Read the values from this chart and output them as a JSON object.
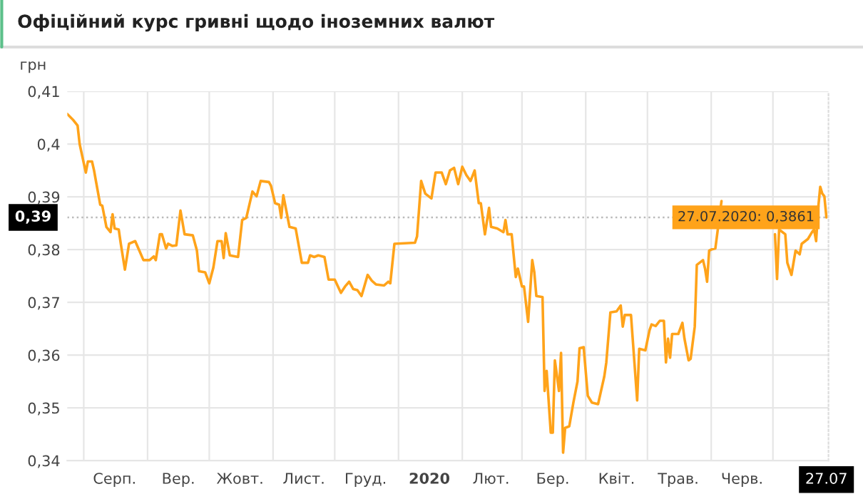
{
  "chart_data": {
    "type": "line",
    "title": "Офіційний курс гривні щодо іноземних валют",
    "ylabel": "грн",
    "x": [
      "2019-07-24",
      "2019-07-27",
      "2019-07-29",
      "2019-07-30",
      "2019-08-02",
      "2019-08-03",
      "2019-08-05",
      "2019-08-06",
      "2019-08-07",
      "2019-08-09",
      "2019-08-10",
      "2019-08-12",
      "2019-08-14",
      "2019-08-15",
      "2019-08-16",
      "2019-08-18",
      "2019-08-19",
      "2019-08-21",
      "2019-08-23",
      "2019-08-26",
      "2019-08-28",
      "2019-08-30",
      "2019-09-02",
      "2019-09-04",
      "2019-09-05",
      "2019-09-07",
      "2019-09-08",
      "2019-09-10",
      "2019-09-11",
      "2019-09-13",
      "2019-09-15",
      "2019-09-17",
      "2019-09-19",
      "2019-09-23",
      "2019-09-25",
      "2019-09-26",
      "2019-09-29",
      "2019-10-01",
      "2019-10-03",
      "2019-10-05",
      "2019-10-07",
      "2019-10-08",
      "2019-10-09",
      "2019-10-11",
      "2019-10-15",
      "2019-10-17",
      "2019-10-19",
      "2019-10-22",
      "2019-10-24",
      "2019-10-26",
      "2019-10-30",
      "2019-10-31",
      "2019-11-02",
      "2019-11-04",
      "2019-11-05",
      "2019-11-06",
      "2019-11-09",
      "2019-11-12",
      "2019-11-15",
      "2019-11-18",
      "2019-11-19",
      "2019-11-21",
      "2019-11-23",
      "2019-11-26",
      "2019-11-28",
      "2019-12-01",
      "2019-12-04",
      "2019-12-06",
      "2019-12-08",
      "2019-12-10",
      "2019-12-12",
      "2019-12-14",
      "2019-12-15",
      "2019-12-17",
      "2019-12-19",
      "2019-12-21",
      "2019-12-25",
      "2019-12-27",
      "2019-12-28",
      "2019-12-30",
      "2020-01-09",
      "2020-01-10",
      "2020-01-12",
      "2020-01-14",
      "2020-01-17",
      "2020-01-19",
      "2020-01-22",
      "2020-01-24",
      "2020-01-26",
      "2020-01-28",
      "2020-01-30",
      "2020-02-01",
      "2020-02-03",
      "2020-02-05",
      "2020-02-07",
      "2020-02-09",
      "2020-02-10",
      "2020-02-12",
      "2020-02-14",
      "2020-02-15",
      "2020-02-18",
      "2020-02-21",
      "2020-02-22",
      "2020-02-23",
      "2020-02-25",
      "2020-02-27",
      "2020-02-28",
      "2020-03-01",
      "2020-03-02",
      "2020-03-04",
      "2020-03-06",
      "2020-03-07",
      "2020-03-08",
      "2020-03-11",
      "2020-03-12",
      "2020-03-13",
      "2020-03-15",
      "2020-03-16",
      "2020-03-17",
      "2020-03-19",
      "2020-03-20",
      "2020-03-21",
      "2020-03-22",
      "2020-03-24",
      "2020-03-26",
      "2020-03-28",
      "2020-03-29",
      "2020-03-31",
      "2020-04-02",
      "2020-04-04",
      "2020-04-07",
      "2020-04-10",
      "2020-04-11",
      "2020-04-13",
      "2020-04-16",
      "2020-04-18",
      "2020-04-19",
      "2020-04-20",
      "2020-04-23",
      "2020-04-24",
      "2020-04-26",
      "2020-04-27",
      "2020-04-30",
      "2020-05-02",
      "2020-05-03",
      "2020-05-05",
      "2020-05-07",
      "2020-05-09",
      "2020-05-10",
      "2020-05-11",
      "2020-05-12",
      "2020-05-13",
      "2020-05-16",
      "2020-05-18",
      "2020-05-19",
      "2020-05-21",
      "2020-05-22",
      "2020-05-24",
      "2020-05-25",
      "2020-05-28",
      "2020-05-29",
      "2020-05-30",
      "2020-05-31",
      "2020-06-01",
      "2020-06-03",
      "2020-06-06",
      "2020-06-08",
      "2020-06-20",
      "2020-07-02",
      "2020-07-03",
      "2020-07-04",
      "2020-07-07",
      "2020-07-08",
      "2020-07-10",
      "2020-07-12",
      "2020-07-14",
      "2020-07-15",
      "2020-07-18",
      "2020-07-20",
      "2020-07-21",
      "2020-07-22",
      "2020-07-23",
      "2020-07-24",
      "2020-07-25",
      "2020-07-26",
      "2020-07-27"
    ],
    "series": [
      {
        "color": "#ffa31a",
        "values": [
          0.4057,
          0.4045,
          0.4035,
          0.4,
          0.3946,
          0.3967,
          0.3967,
          0.395,
          0.3928,
          0.3885,
          0.3883,
          0.3843,
          0.3833,
          0.3867,
          0.384,
          0.3838,
          0.3811,
          0.3762,
          0.3811,
          0.3816,
          0.3798,
          0.378,
          0.378,
          0.3787,
          0.378,
          0.3829,
          0.3829,
          0.3802,
          0.3811,
          0.3807,
          0.3808,
          0.3874,
          0.3829,
          0.3827,
          0.3798,
          0.3759,
          0.3757,
          0.3736,
          0.3766,
          0.3816,
          0.3816,
          0.3784,
          0.3831,
          0.3789,
          0.3786,
          0.3856,
          0.386,
          0.391,
          0.3901,
          0.393,
          0.3928,
          0.3921,
          0.3888,
          0.3885,
          0.386,
          0.3903,
          0.3843,
          0.384,
          0.3775,
          0.3775,
          0.3789,
          0.3786,
          0.3789,
          0.3786,
          0.3743,
          0.3743,
          0.3718,
          0.373,
          0.3739,
          0.3725,
          0.3723,
          0.3712,
          0.3725,
          0.3752,
          0.3741,
          0.3734,
          0.3732,
          0.3739,
          0.3736,
          0.3811,
          0.3813,
          0.3825,
          0.393,
          0.3906,
          0.3897,
          0.3946,
          0.3946,
          0.3924,
          0.395,
          0.3955,
          0.3924,
          0.3957,
          0.3941,
          0.393,
          0.395,
          0.3888,
          0.3888,
          0.3829,
          0.3879,
          0.3843,
          0.384,
          0.3833,
          0.3856,
          0.3829,
          0.3829,
          0.3748,
          0.3764,
          0.373,
          0.373,
          0.3663,
          0.378,
          0.3757,
          0.3712,
          0.371,
          0.3532,
          0.357,
          0.3453,
          0.3453,
          0.359,
          0.3532,
          0.3604,
          0.3415,
          0.3462,
          0.3465,
          0.351,
          0.355,
          0.3613,
          0.3615,
          0.3523,
          0.351,
          0.3507,
          0.3559,
          0.3586,
          0.3681,
          0.3683,
          0.3694,
          0.3654,
          0.3676,
          0.3676,
          0.3622,
          0.3514,
          0.3612,
          0.3609,
          0.3647,
          0.3658,
          0.3655,
          0.3665,
          0.3665,
          0.3586,
          0.3631,
          0.3595,
          0.364,
          0.364,
          0.3661,
          0.3631,
          0.359,
          0.3593,
          0.3654,
          0.3771,
          0.378,
          0.3764,
          0.3739,
          0.3798,
          0.38,
          0.3802,
          0.3892,
          null,
          null,
          0.3829,
          0.3744,
          0.3838,
          0.3829,
          0.3775,
          0.3752,
          0.3798,
          0.3791,
          0.3811,
          0.382,
          0.3833,
          0.3838,
          0.3816,
          0.3879,
          0.3919,
          0.3906,
          0.3901,
          0.3861
        ]
      }
    ],
    "xlim": [
      "2019-07-24",
      "2020-07-28"
    ],
    "xticks": [
      {
        "value": "2019-08-01",
        "label": null
      },
      {
        "value": "2019-08-16",
        "label": "Серп."
      },
      {
        "value": "2019-09-01",
        "label": null
      },
      {
        "value": "2019-09-16",
        "label": "Вер."
      },
      {
        "value": "2019-10-01",
        "label": null
      },
      {
        "value": "2019-10-16",
        "label": "Жовт."
      },
      {
        "value": "2019-11-01",
        "label": null
      },
      {
        "value": "2019-11-16",
        "label": "Лист."
      },
      {
        "value": "2019-12-01",
        "label": null
      },
      {
        "value": "2019-12-16",
        "label": "Груд."
      },
      {
        "value": "2020-01-01",
        "label": null
      },
      {
        "value": "2020-01-16",
        "label": "2020"
      },
      {
        "value": "2020-02-01",
        "label": null
      },
      {
        "value": "2020-02-15",
        "label": "Лют."
      },
      {
        "value": "2020-03-01",
        "label": null
      },
      {
        "value": "2020-03-16",
        "label": "Бер."
      },
      {
        "value": "2020-04-01",
        "label": null
      },
      {
        "value": "2020-04-16",
        "label": "Квіт."
      },
      {
        "value": "2020-05-01",
        "label": null
      },
      {
        "value": "2020-05-16",
        "label": "Трав."
      },
      {
        "value": "2020-06-01",
        "label": null
      },
      {
        "value": "2020-06-16",
        "label": "Черв."
      },
      {
        "value": "2020-07-01",
        "label": null
      },
      {
        "value": "2020-07-27",
        "label": "27.07"
      }
    ],
    "ylim": [
      0.34,
      0.41
    ],
    "yticks": [
      {
        "value": 0.34,
        "label": "0,34"
      },
      {
        "value": 0.35,
        "label": "0,35"
      },
      {
        "value": 0.36,
        "label": "0,36"
      },
      {
        "value": 0.37,
        "label": "0,37"
      },
      {
        "value": 0.38,
        "label": "0,38"
      },
      {
        "value": 0.39,
        "label": "0,39"
      },
      {
        "value": 0.4,
        "label": "0,4"
      },
      {
        "value": 0.41,
        "label": "0,41"
      }
    ],
    "grid": true,
    "ref_lines": [
      {
        "axis": "y",
        "value": 0.3861,
        "label": "0,39",
        "color": "#bbbbbb",
        "line_style": "dotted"
      }
    ],
    "annotations": [
      {
        "text": "27.07.2020: 0,3861",
        "x": "2020-07-27",
        "y": 0.3861
      }
    ]
  }
}
